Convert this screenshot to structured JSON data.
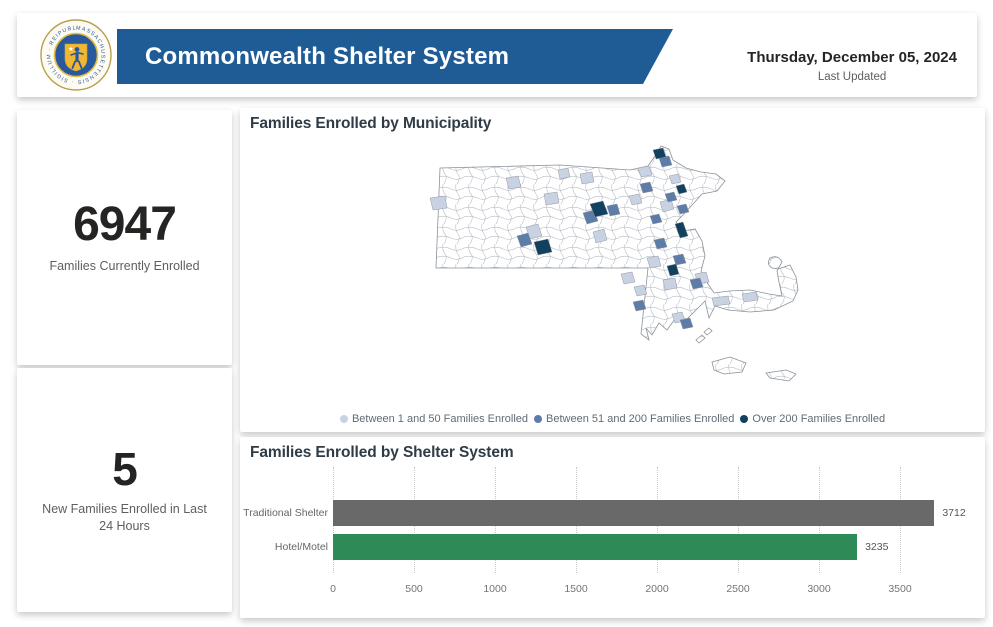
{
  "header": {
    "title": "Commonwealth Shelter System",
    "date": "Thursday, December 05, 2024",
    "last_updated_label": "Last Updated",
    "seal_ring_text": "MASSACHUSETTENSIS · SIGILLUM · REIPUBLICÆ ·",
    "banner_color": "#1f5c96"
  },
  "kpis": [
    {
      "value": "6947",
      "label": "Families Currently Enrolled"
    },
    {
      "value": "5",
      "label": "New Families Enrolled in Last 24 Hours"
    }
  ],
  "map_panel": {
    "title": "Families Enrolled by Municipality"
  },
  "shelter_panel": {
    "title": "Families Enrolled by Shelter System"
  },
  "chart_data": [
    {
      "type": "heatmap",
      "subtype": "choropleth-map",
      "title": "Families Enrolled by Municipality",
      "region": "Massachusetts municipalities",
      "bins": [
        {
          "label": "Between 1 and 50 Families Enrolled",
          "color": "#c8d2e3"
        },
        {
          "label": "Between 51 and 200 Families Enrolled",
          "color": "#5d7ca7"
        },
        {
          "label": "Over 200 Families Enrolled",
          "color": "#12405f"
        }
      ]
    },
    {
      "type": "bar",
      "orientation": "horizontal",
      "title": "Families Enrolled by Shelter System",
      "categories": [
        "Traditional Shelter",
        "Hotel/Motel"
      ],
      "values": [
        3712,
        3235
      ],
      "colors": [
        "#696969",
        "#2e8b57"
      ],
      "xticks": [
        0,
        500,
        1000,
        1500,
        2000,
        2500,
        3000,
        3500
      ],
      "xlim": [
        0,
        3860
      ],
      "grid": "dotted-vertical",
      "value_labels": true
    }
  ]
}
